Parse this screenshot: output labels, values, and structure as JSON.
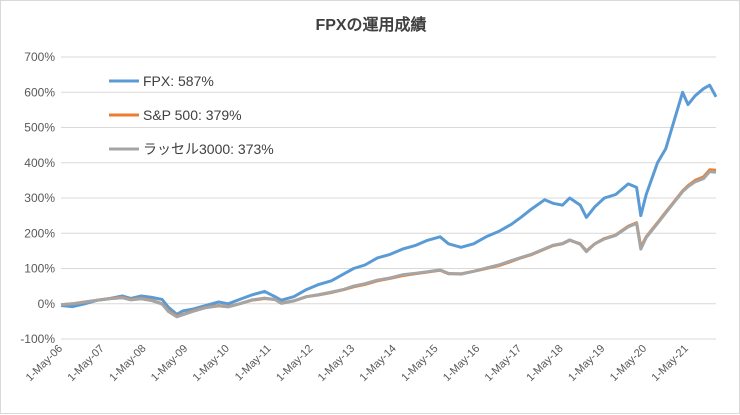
{
  "chart_data": {
    "type": "line",
    "title": "FPXの運用成績",
    "xlabel": "",
    "ylabel": "",
    "ylim": [
      -100,
      700
    ],
    "y_ticks": [
      "-100%",
      "0%",
      "100%",
      "200%",
      "300%",
      "400%",
      "500%",
      "600%",
      "700%"
    ],
    "x_ticks": [
      "1-May-06",
      "1-May-07",
      "1-May-08",
      "1-May-09",
      "1-May-10",
      "1-May-11",
      "1-May-12",
      "1-May-13",
      "1-May-14",
      "1-May-15",
      "1-May-16",
      "1-May-17",
      "1-May-18",
      "1-May-19",
      "1-May-20",
      "1-May-21"
    ],
    "grid": true,
    "legend_position": "top-left",
    "series": [
      {
        "name": "FPX: 587%",
        "color": "#5b9bd5",
        "points": [
          [
            2006.33,
            -5
          ],
          [
            2006.6,
            -8
          ],
          [
            2006.9,
            0
          ],
          [
            2007.2,
            10
          ],
          [
            2007.5,
            15
          ],
          [
            2007.8,
            22
          ],
          [
            2008.0,
            15
          ],
          [
            2008.25,
            22
          ],
          [
            2008.5,
            18
          ],
          [
            2008.75,
            12
          ],
          [
            2008.9,
            -10
          ],
          [
            2009.1,
            -30
          ],
          [
            2009.25,
            -20
          ],
          [
            2009.5,
            -15
          ],
          [
            2009.8,
            -5
          ],
          [
            2010.1,
            5
          ],
          [
            2010.33,
            0
          ],
          [
            2010.6,
            12
          ],
          [
            2010.9,
            25
          ],
          [
            2011.2,
            35
          ],
          [
            2011.45,
            20
          ],
          [
            2011.6,
            10
          ],
          [
            2011.9,
            20
          ],
          [
            2012.2,
            40
          ],
          [
            2012.5,
            55
          ],
          [
            2012.8,
            65
          ],
          [
            2013.1,
            85
          ],
          [
            2013.33,
            100
          ],
          [
            2013.6,
            110
          ],
          [
            2013.9,
            130
          ],
          [
            2014.2,
            140
          ],
          [
            2014.5,
            155
          ],
          [
            2014.8,
            165
          ],
          [
            2015.1,
            180
          ],
          [
            2015.4,
            190
          ],
          [
            2015.6,
            170
          ],
          [
            2015.9,
            160
          ],
          [
            2016.2,
            170
          ],
          [
            2016.5,
            190
          ],
          [
            2016.8,
            205
          ],
          [
            2017.1,
            225
          ],
          [
            2017.33,
            245
          ],
          [
            2017.6,
            270
          ],
          [
            2017.9,
            295
          ],
          [
            2018.1,
            285
          ],
          [
            2018.33,
            280
          ],
          [
            2018.5,
            300
          ],
          [
            2018.75,
            280
          ],
          [
            2018.9,
            245
          ],
          [
            2019.1,
            275
          ],
          [
            2019.33,
            300
          ],
          [
            2019.6,
            310
          ],
          [
            2019.9,
            340
          ],
          [
            2020.1,
            330
          ],
          [
            2020.2,
            250
          ],
          [
            2020.33,
            310
          ],
          [
            2020.6,
            400
          ],
          [
            2020.8,
            440
          ],
          [
            2021.0,
            520
          ],
          [
            2021.2,
            600
          ],
          [
            2021.33,
            565
          ],
          [
            2021.5,
            590
          ],
          [
            2021.7,
            610
          ],
          [
            2021.85,
            620
          ],
          [
            2022.0,
            587
          ]
        ]
      },
      {
        "name": "S&P 500: 379%",
        "color": "#ed7d31",
        "points": [
          [
            2006.33,
            -3
          ],
          [
            2006.6,
            0
          ],
          [
            2006.9,
            5
          ],
          [
            2007.2,
            10
          ],
          [
            2007.5,
            15
          ],
          [
            2007.8,
            18
          ],
          [
            2008.0,
            12
          ],
          [
            2008.25,
            15
          ],
          [
            2008.5,
            10
          ],
          [
            2008.75,
            0
          ],
          [
            2008.9,
            -20
          ],
          [
            2009.1,
            -35
          ],
          [
            2009.25,
            -30
          ],
          [
            2009.5,
            -20
          ],
          [
            2009.8,
            -10
          ],
          [
            2010.1,
            -5
          ],
          [
            2010.33,
            -8
          ],
          [
            2010.6,
            0
          ],
          [
            2010.9,
            10
          ],
          [
            2011.2,
            15
          ],
          [
            2011.45,
            12
          ],
          [
            2011.6,
            2
          ],
          [
            2011.9,
            8
          ],
          [
            2012.2,
            20
          ],
          [
            2012.5,
            25
          ],
          [
            2012.8,
            32
          ],
          [
            2013.1,
            40
          ],
          [
            2013.33,
            48
          ],
          [
            2013.6,
            55
          ],
          [
            2013.9,
            65
          ],
          [
            2014.2,
            72
          ],
          [
            2014.5,
            80
          ],
          [
            2014.8,
            85
          ],
          [
            2015.1,
            90
          ],
          [
            2015.4,
            95
          ],
          [
            2015.6,
            85
          ],
          [
            2015.9,
            85
          ],
          [
            2016.2,
            92
          ],
          [
            2016.5,
            100
          ],
          [
            2016.8,
            108
          ],
          [
            2017.1,
            120
          ],
          [
            2017.33,
            130
          ],
          [
            2017.6,
            140
          ],
          [
            2017.9,
            155
          ],
          [
            2018.1,
            165
          ],
          [
            2018.33,
            170
          ],
          [
            2018.5,
            180
          ],
          [
            2018.75,
            170
          ],
          [
            2018.9,
            150
          ],
          [
            2019.1,
            170
          ],
          [
            2019.33,
            185
          ],
          [
            2019.6,
            195
          ],
          [
            2019.9,
            220
          ],
          [
            2020.1,
            230
          ],
          [
            2020.2,
            160
          ],
          [
            2020.33,
            190
          ],
          [
            2020.6,
            230
          ],
          [
            2020.8,
            260
          ],
          [
            2021.0,
            290
          ],
          [
            2021.2,
            320
          ],
          [
            2021.33,
            335
          ],
          [
            2021.5,
            350
          ],
          [
            2021.7,
            360
          ],
          [
            2021.85,
            380
          ],
          [
            2022.0,
            379
          ]
        ]
      },
      {
        "name": "ラッセル3000: 373%",
        "color": "#a5a5a5",
        "points": [
          [
            2006.33,
            -3
          ],
          [
            2006.6,
            0
          ],
          [
            2006.9,
            5
          ],
          [
            2007.2,
            10
          ],
          [
            2007.5,
            14
          ],
          [
            2007.8,
            17
          ],
          [
            2008.0,
            11
          ],
          [
            2008.25,
            14
          ],
          [
            2008.5,
            9
          ],
          [
            2008.75,
            -1
          ],
          [
            2008.9,
            -22
          ],
          [
            2009.1,
            -37
          ],
          [
            2009.25,
            -31
          ],
          [
            2009.5,
            -21
          ],
          [
            2009.8,
            -11
          ],
          [
            2010.1,
            -6
          ],
          [
            2010.33,
            -9
          ],
          [
            2010.6,
            0
          ],
          [
            2010.9,
            11
          ],
          [
            2011.2,
            16
          ],
          [
            2011.45,
            12
          ],
          [
            2011.6,
            1
          ],
          [
            2011.9,
            8
          ],
          [
            2012.2,
            20
          ],
          [
            2012.5,
            26
          ],
          [
            2012.8,
            33
          ],
          [
            2013.1,
            41
          ],
          [
            2013.33,
            50
          ],
          [
            2013.6,
            57
          ],
          [
            2013.9,
            67
          ],
          [
            2014.2,
            73
          ],
          [
            2014.5,
            82
          ],
          [
            2014.8,
            86
          ],
          [
            2015.1,
            91
          ],
          [
            2015.4,
            96
          ],
          [
            2015.6,
            86
          ],
          [
            2015.9,
            84
          ],
          [
            2016.2,
            92
          ],
          [
            2016.5,
            101
          ],
          [
            2016.8,
            110
          ],
          [
            2017.1,
            122
          ],
          [
            2017.33,
            131
          ],
          [
            2017.6,
            141
          ],
          [
            2017.9,
            156
          ],
          [
            2018.1,
            166
          ],
          [
            2018.33,
            171
          ],
          [
            2018.5,
            181
          ],
          [
            2018.75,
            169
          ],
          [
            2018.9,
            148
          ],
          [
            2019.1,
            170
          ],
          [
            2019.33,
            184
          ],
          [
            2019.6,
            194
          ],
          [
            2019.9,
            218
          ],
          [
            2020.1,
            228
          ],
          [
            2020.2,
            155
          ],
          [
            2020.33,
            188
          ],
          [
            2020.6,
            228
          ],
          [
            2020.8,
            258
          ],
          [
            2021.0,
            288
          ],
          [
            2021.2,
            318
          ],
          [
            2021.33,
            332
          ],
          [
            2021.5,
            346
          ],
          [
            2021.7,
            355
          ],
          [
            2021.85,
            375
          ],
          [
            2022.0,
            373
          ]
        ]
      }
    ]
  }
}
